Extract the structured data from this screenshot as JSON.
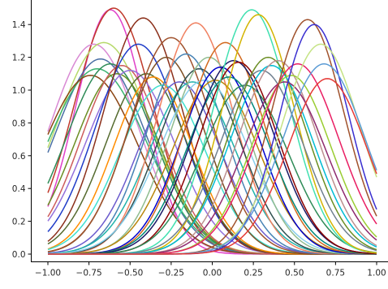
{
  "chart_data": {
    "type": "line",
    "title": "",
    "xlabel": "",
    "ylabel": "",
    "xlim": [
      -1.05,
      1.05
    ],
    "ylim": [
      -0.03,
      1.57
    ],
    "x_ticks": [
      -1.0,
      -0.75,
      -0.5,
      -0.25,
      0.0,
      0.25,
      0.5,
      0.75,
      1.0
    ],
    "x_tick_labels": [
      "−1.00",
      "−0.75",
      "−0.50",
      "−0.25",
      "0.00",
      "0.25",
      "0.50",
      "0.75",
      "1.00"
    ],
    "y_ticks": [
      0.0,
      0.2,
      0.4,
      0.6,
      0.8,
      1.0,
      1.2,
      1.4
    ],
    "y_tick_labels": [
      "0.0",
      "0.2",
      "0.4",
      "0.6",
      "0.8",
      "1.0",
      "1.2",
      "1.4"
    ],
    "grid": false,
    "curve_family": "gaussian",
    "series": [
      {
        "center": -0.62,
        "peak": 1.49,
        "width": 0.21,
        "color": "#e040c8"
      },
      {
        "center": -0.6,
        "peak": 1.5,
        "width": 0.24,
        "color": "#c0392b"
      },
      {
        "center": -0.72,
        "peak": 1.28,
        "width": 0.27,
        "color": "#d98ad4"
      },
      {
        "center": -0.66,
        "peak": 1.29,
        "width": 0.29,
        "color": "#b6d96a"
      },
      {
        "center": -0.68,
        "peak": 1.19,
        "width": 0.28,
        "color": "#4a6fa5"
      },
      {
        "center": -0.7,
        "peak": 1.13,
        "width": 0.3,
        "color": "#3cb371"
      },
      {
        "center": -0.74,
        "peak": 1.09,
        "width": 0.29,
        "color": "#8b4513"
      },
      {
        "center": -0.62,
        "peak": 1.16,
        "width": 0.27,
        "color": "#2e8b57"
      },
      {
        "center": -0.58,
        "peak": 1.1,
        "width": 0.26,
        "color": "#6b8e23"
      },
      {
        "center": -0.55,
        "peak": 1.15,
        "width": 0.25,
        "color": "#cd5c5c"
      },
      {
        "center": -0.5,
        "peak": 1.12,
        "width": 0.27,
        "color": "#9370db"
      },
      {
        "center": -0.45,
        "peak": 1.28,
        "width": 0.26,
        "color": "#1f3cc8"
      },
      {
        "center": -0.42,
        "peak": 1.44,
        "width": 0.24,
        "color": "#8b2f1a"
      },
      {
        "center": -0.4,
        "peak": 1.1,
        "width": 0.25,
        "color": "#556b2f"
      },
      {
        "center": -0.36,
        "peak": 1.08,
        "width": 0.24,
        "color": "#ff8c00"
      },
      {
        "center": -0.3,
        "peak": 1.03,
        "width": 0.26,
        "color": "#40e0d0"
      },
      {
        "center": -0.28,
        "peak": 1.2,
        "width": 0.24,
        "color": "#7f4f24"
      },
      {
        "center": -0.25,
        "peak": 1.32,
        "width": 0.25,
        "color": "#a0522d"
      },
      {
        "center": -0.2,
        "peak": 1.05,
        "width": 0.25,
        "color": "#6a5acd"
      },
      {
        "center": -0.16,
        "peak": 1.22,
        "width": 0.24,
        "color": "#4682b4"
      },
      {
        "center": -0.12,
        "peak": 1.05,
        "width": 0.26,
        "color": "#20b2aa"
      },
      {
        "center": -0.1,
        "peak": 1.41,
        "width": 0.23,
        "color": "#f08060"
      },
      {
        "center": -0.08,
        "peak": 1.13,
        "width": 0.25,
        "color": "#2f4f4f"
      },
      {
        "center": -0.05,
        "peak": 1.06,
        "width": 0.27,
        "color": "#87ceeb"
      },
      {
        "center": -0.02,
        "peak": 1.2,
        "width": 0.24,
        "color": "#8fbc8f"
      },
      {
        "center": 0.02,
        "peak": 1.06,
        "width": 0.26,
        "color": "#b8860b"
      },
      {
        "center": 0.05,
        "peak": 1.14,
        "width": 0.24,
        "color": "#0000cd"
      },
      {
        "center": 0.08,
        "peak": 1.29,
        "width": 0.24,
        "color": "#d2691e"
      },
      {
        "center": 0.1,
        "peak": 1.08,
        "width": 0.25,
        "color": "#00897b"
      },
      {
        "center": 0.13,
        "peak": 1.18,
        "width": 0.25,
        "color": "#1a1a66"
      },
      {
        "center": 0.16,
        "peak": 1.17,
        "width": 0.24,
        "color": "#8b0000"
      },
      {
        "center": 0.2,
        "peak": 1.03,
        "width": 0.26,
        "color": "#2e8b57"
      },
      {
        "center": 0.24,
        "peak": 1.49,
        "width": 0.23,
        "color": "#40e0b0"
      },
      {
        "center": 0.28,
        "peak": 1.46,
        "width": 0.22,
        "color": "#d4b400"
      },
      {
        "center": 0.3,
        "peak": 1.12,
        "width": 0.25,
        "color": "#708090"
      },
      {
        "center": 0.34,
        "peak": 1.2,
        "width": 0.24,
        "color": "#6b8e23"
      },
      {
        "center": 0.36,
        "peak": 1.15,
        "width": 0.25,
        "color": "#00bcd4"
      },
      {
        "center": 0.4,
        "peak": 1.18,
        "width": 0.24,
        "color": "#bc8f8f"
      },
      {
        "center": 0.44,
        "peak": 1.05,
        "width": 0.25,
        "color": "#8e2a6e"
      },
      {
        "center": 0.48,
        "peak": 1.09,
        "width": 0.24,
        "color": "#9acd32"
      },
      {
        "center": 0.52,
        "peak": 1.16,
        "width": 0.25,
        "color": "#e91e63"
      },
      {
        "center": 0.58,
        "peak": 1.43,
        "width": 0.22,
        "color": "#a0522d"
      },
      {
        "center": 0.62,
        "peak": 1.4,
        "width": 0.21,
        "color": "#3a2fd0"
      },
      {
        "center": 0.66,
        "peak": 1.28,
        "width": 0.24,
        "color": "#c5e384"
      },
      {
        "center": 0.68,
        "peak": 1.16,
        "width": 0.25,
        "color": "#5b9bd5"
      },
      {
        "center": 0.7,
        "peak": 1.07,
        "width": 0.24,
        "color": "#e53935"
      }
    ]
  }
}
